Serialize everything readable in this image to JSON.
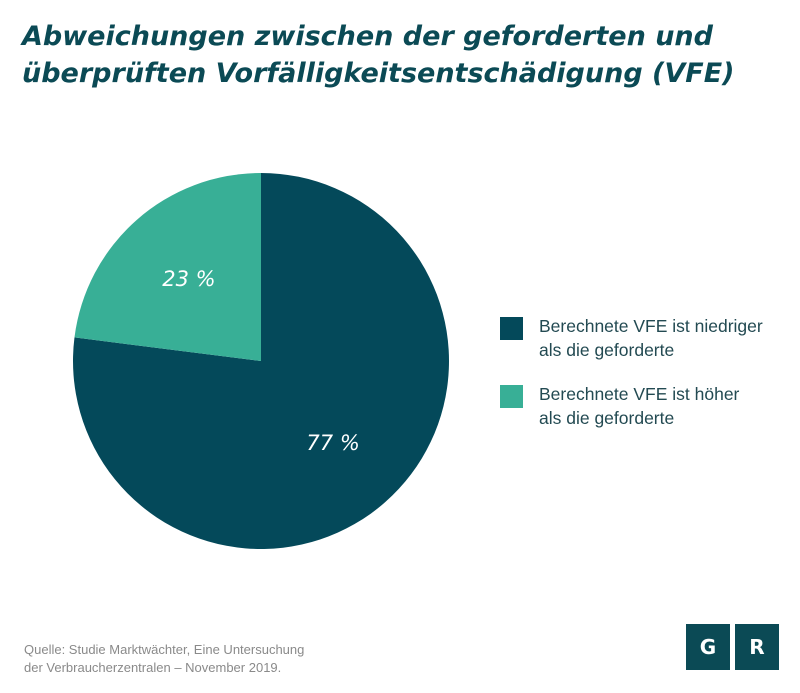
{
  "title_lines": [
    "Abweichungen zwischen der geforderten und",
    "überprüften Vorfälligkeitsentschädigung (VFE)"
  ],
  "chart_data": {
    "type": "pie",
    "slices": [
      {
        "value": 77,
        "label": "77 %",
        "color": "#04495a",
        "legend": [
          "Berechnete VFE ist niedriger",
          "als die geforderte"
        ]
      },
      {
        "value": 23,
        "label": "23 %",
        "color": "#38af96",
        "legend": [
          "Berechnete VFE ist höher",
          "als die geforderte"
        ]
      }
    ],
    "legend_position": "right"
  },
  "source_lines": [
    "Quelle: Studie Marktwächter, Eine Untersuchung",
    "der Verbraucherzentralen – November 2019."
  ],
  "logo": {
    "letters": [
      "G",
      "R"
    ],
    "color": "#0b4a55"
  }
}
